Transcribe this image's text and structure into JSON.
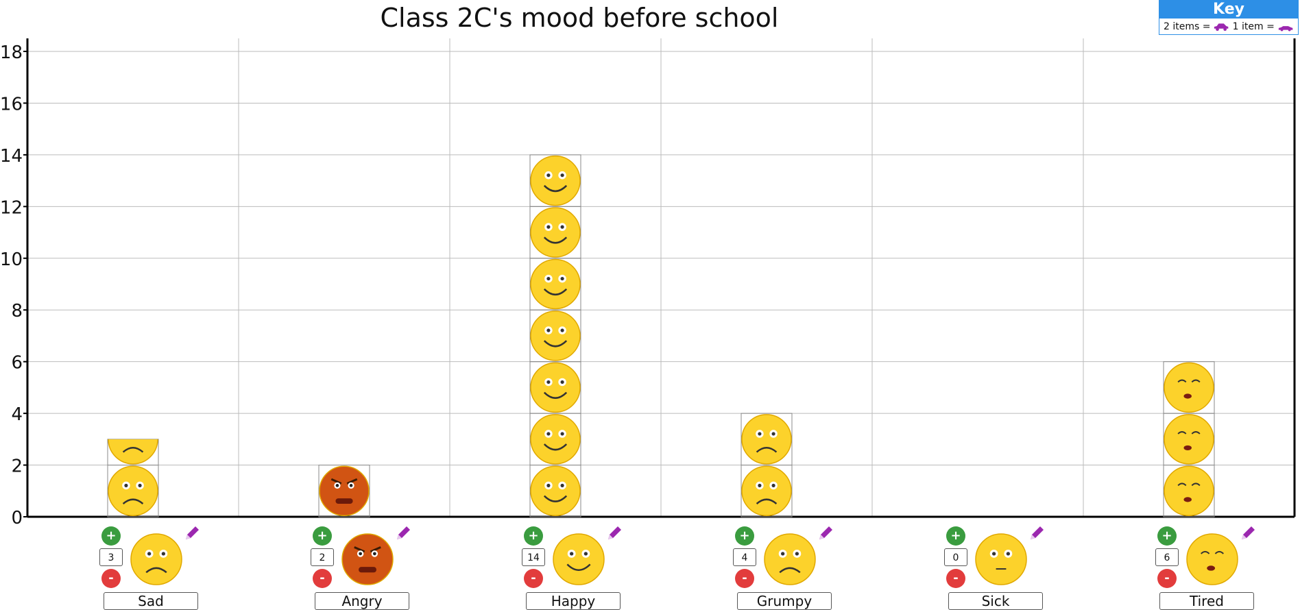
{
  "title": "Class 2C's mood before school",
  "key": {
    "heading": "Key",
    "text_two": "2 items =",
    "text_one": "1 item =",
    "icon_color": "#9b27af"
  },
  "chart_data": {
    "type": "bar",
    "title": "Class 2C's mood before school",
    "xlabel": "",
    "ylabel": "",
    "ylim": [
      0,
      18
    ],
    "yticks": [
      0,
      2,
      4,
      6,
      8,
      10,
      12,
      14,
      16,
      18
    ],
    "grid": true,
    "categories": [
      "Sad",
      "Angry",
      "Happy",
      "Grumpy",
      "Sick",
      "Tired"
    ],
    "values": [
      3,
      2,
      14,
      4,
      0,
      6
    ],
    "items_per_icon": 2
  },
  "controls": {
    "plus": "+",
    "minus": "-"
  },
  "faces": {
    "Sad": {
      "fill": "#fcd22b",
      "mouth": "frown",
      "face_color": "#fcd22b"
    },
    "Angry": {
      "fill": "#d15413",
      "mouth": "angry"
    },
    "Happy": {
      "fill": "#fcd22b",
      "mouth": "smile"
    },
    "Grumpy": {
      "fill": "#fcd22b",
      "mouth": "frown"
    },
    "Sick": {
      "fill": "#fcd22b",
      "mouth": "flat"
    },
    "Tired": {
      "fill": "#fcd22b",
      "mouth": "tired"
    }
  },
  "colors": {
    "plus": "#3a9c3f",
    "minus": "#e23c3c",
    "pencil": "#9b27af",
    "grid": "#bbbbbb",
    "axis": "#000000"
  }
}
